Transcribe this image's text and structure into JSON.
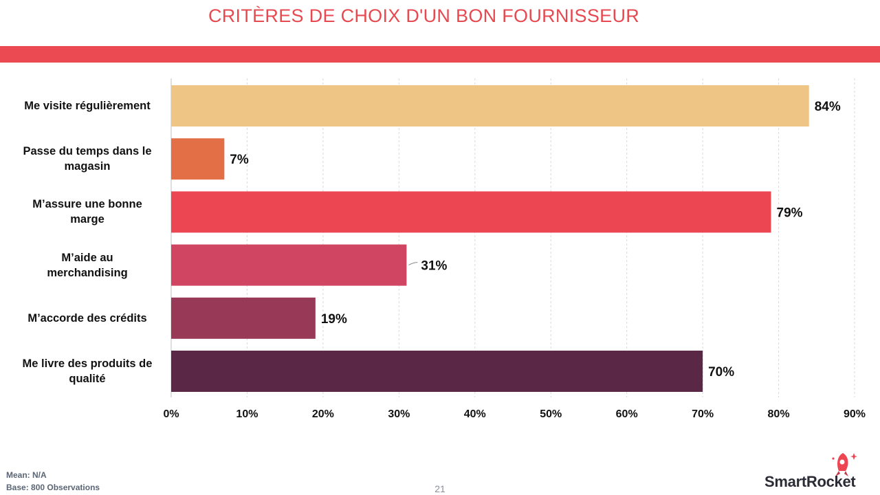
{
  "header": {
    "title": "CRITÈRES DE CHOIX D'UN BON FOURNISSEUR"
  },
  "chart_data": {
    "type": "bar",
    "orientation": "horizontal",
    "categories": [
      "Me visite régulièrement",
      "Passe du temps dans le magasin",
      "M’assure une bonne marge",
      "M’aide au merchandising",
      "M’accorde des crédits",
      "Me livre des produits de qualité"
    ],
    "category_lines": [
      [
        "Me visite régulièrement"
      ],
      [
        "Passe du temps dans le",
        "magasin"
      ],
      [
        "M’assure une bonne",
        "marge"
      ],
      [
        "M’aide au",
        "merchandising"
      ],
      [
        "M’accorde des crédits"
      ],
      [
        "Me livre des produits de",
        "qualité"
      ]
    ],
    "values": [
      84,
      7,
      79,
      31,
      19,
      70
    ],
    "value_labels": [
      "84%",
      "7%",
      "79%",
      "31%",
      "19%",
      "70%"
    ],
    "colors": [
      "#eec585",
      "#e36f47",
      "#ec4653",
      "#d04562",
      "#983a57",
      "#5a2747"
    ],
    "xlim": [
      0,
      90
    ],
    "x_ticks": [
      0,
      10,
      20,
      30,
      40,
      50,
      60,
      70,
      80,
      90
    ],
    "x_tick_labels": [
      "0%",
      "10%",
      "20%",
      "30%",
      "40%",
      "50%",
      "60%",
      "70%",
      "80%",
      "90%"
    ],
    "grid": "vertical dashed",
    "title": "CRITÈRES DE CHOIX D'UN BON FOURNISSEUR",
    "xlabel": "",
    "ylabel": ""
  },
  "footer": {
    "mean": "Mean: N/A",
    "base": "Base: 800 Observations",
    "page_number": "21",
    "logo_text": "SmartRocket"
  }
}
